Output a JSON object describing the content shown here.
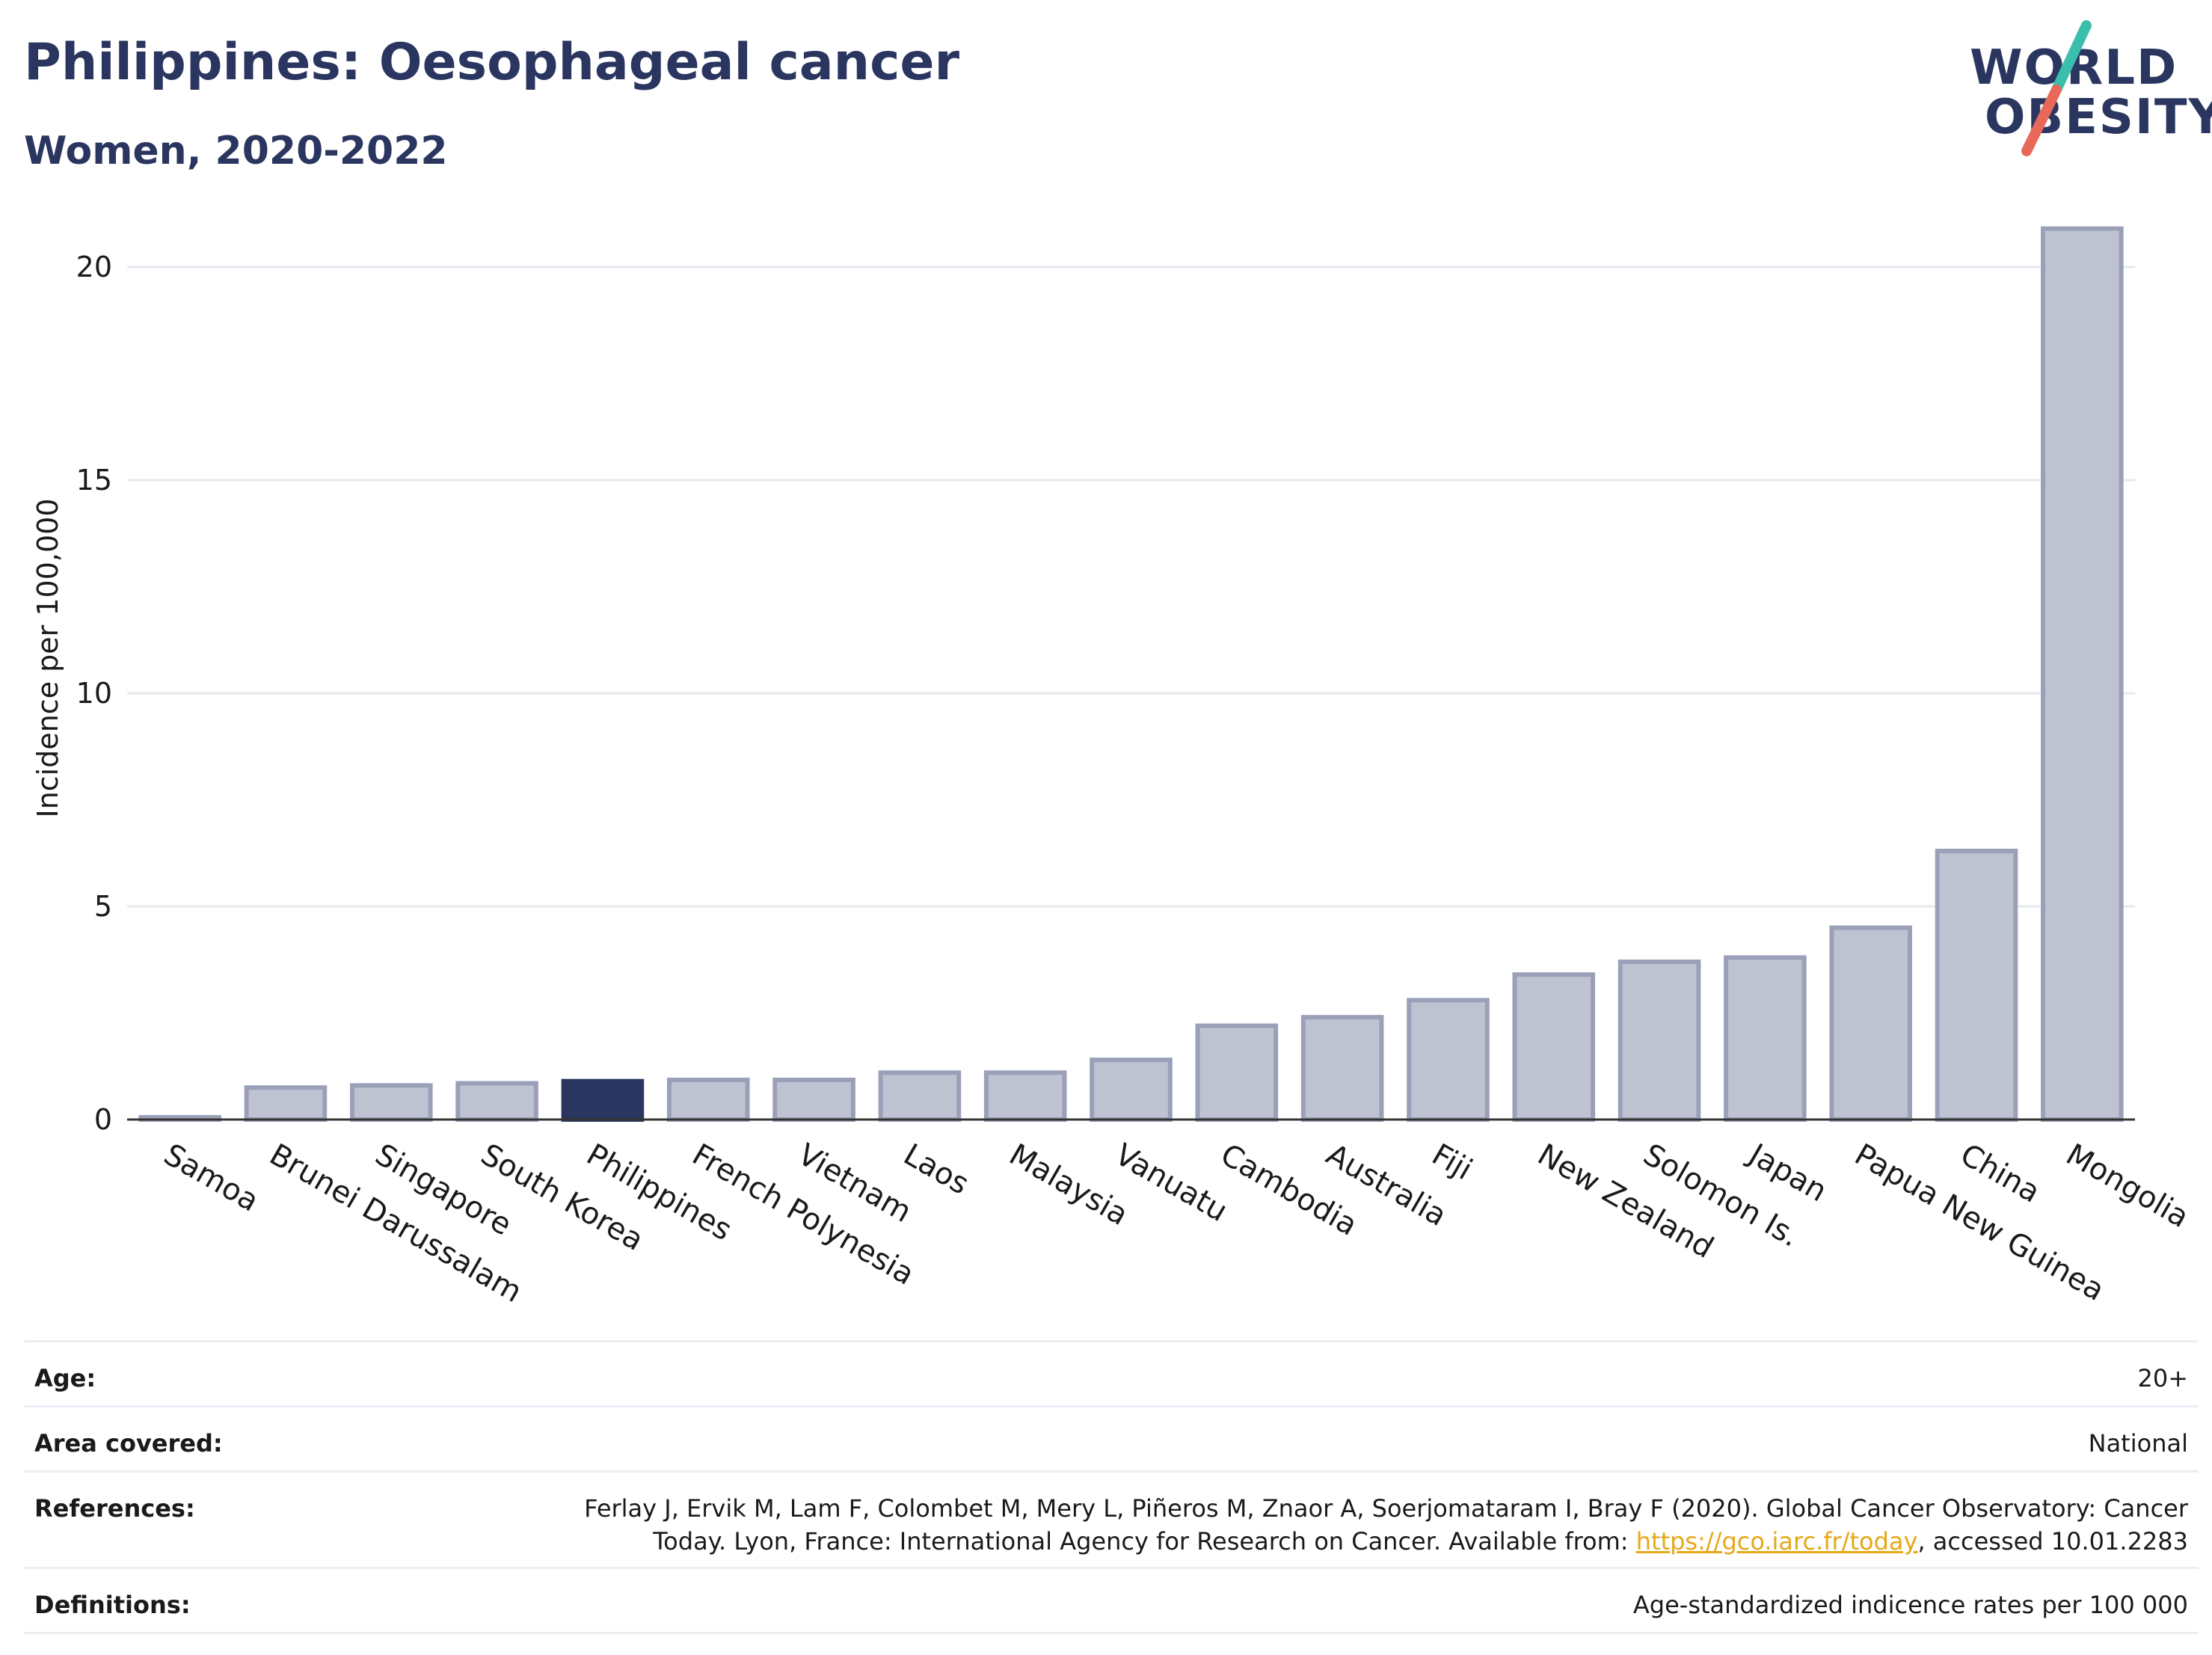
{
  "header": {
    "title": "Philippines: Oesophageal cancer",
    "subtitle": "Women, 2020-2022"
  },
  "logo": {
    "line1": "WORLD",
    "line2": "OBESITY",
    "accent_teal": "#3bbfad",
    "accent_red": "#e8695a"
  },
  "colors": {
    "highlight": "#2b3660",
    "bar_fill": "#bfc3d1",
    "bar_stroke": "#9aa0b8",
    "grid": "#e6e8ee"
  },
  "chart_data": {
    "type": "bar",
    "ylabel": "Incidence per 100,000",
    "xlabel": "",
    "ylim": [
      0,
      21
    ],
    "yticks": [
      0,
      5,
      10,
      15,
      20
    ],
    "grid": true,
    "highlight": "Philippines",
    "categories": [
      "Samoa",
      "Brunei Darussalam",
      "Singapore",
      "South Korea",
      "Philippines",
      "French Polynesia",
      "Vietnam",
      "Laos",
      "Malaysia",
      "Vanuatu",
      "Cambodia",
      "Australia",
      "Fiji",
      "New Zealand",
      "Solomon Is.",
      "Japan",
      "Papua New Guinea",
      "China",
      "Mongolia"
    ],
    "values": [
      0.05,
      0.75,
      0.8,
      0.85,
      0.9,
      0.93,
      0.93,
      1.1,
      1.1,
      1.4,
      2.2,
      2.4,
      2.8,
      3.4,
      3.7,
      3.8,
      4.5,
      6.3,
      20.9
    ]
  },
  "info": {
    "age_label": "Age:",
    "age_value": "20+",
    "area_label": "Area covered:",
    "area_value": "National",
    "ref_label": "References:",
    "ref_line1": "Ferlay J, Ervik M, Lam F, Colombet M, Mery L, Piñeros M, Znaor A, Soerjomataram I, Bray F (2020). Global Cancer Observatory: Cancer",
    "ref_line2_pre": "Today. Lyon, France: International Agency for Research on Cancer. Available from: ",
    "ref_link": "https://gco.iarc.fr/today",
    "ref_line2_post": ", accessed 10.01.2283",
    "def_label": "Definitions:",
    "def_value": "Age-standardized indicence rates per 100 000"
  }
}
